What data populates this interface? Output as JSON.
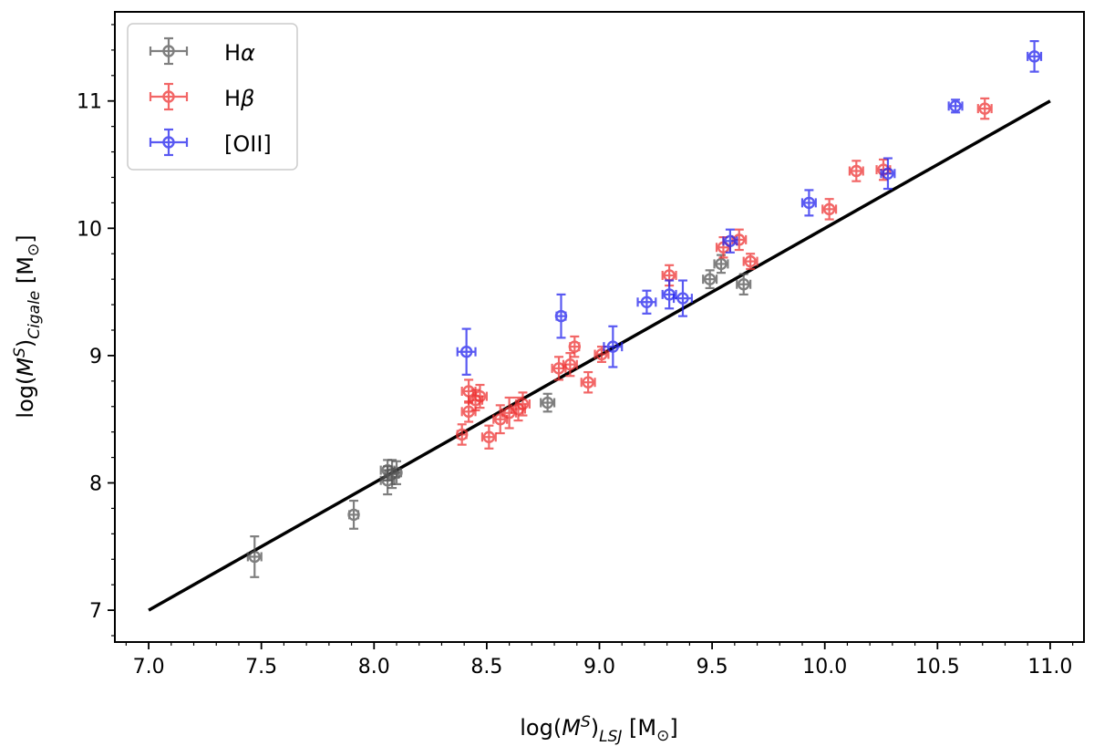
{
  "chart_data": {
    "type": "scatter",
    "xlabel": {
      "main": "log(",
      "var": "M",
      "sub1": "S",
      "close": ")",
      "sub2": "LSJ",
      "unit": " [M",
      "sun": "⊙",
      "end": "]"
    },
    "ylabel": {
      "main": "log(",
      "var": "M",
      "sub1": "S",
      "close": ")",
      "sub2": "Cigale",
      "unit": " [M",
      "sun": "⊙",
      "end": "]"
    },
    "xlim": [
      6.85,
      11.15
    ],
    "ylim": [
      6.75,
      11.7
    ],
    "xticks": [
      "7.0",
      "7.5",
      "8.0",
      "8.5",
      "9.0",
      "9.5",
      "10.0",
      "10.5",
      "11.0"
    ],
    "yticks": [
      "7",
      "8",
      "9",
      "10",
      "11"
    ],
    "legend": {
      "position": "top-left"
    },
    "one_to_one_line": {
      "x": [
        7.0,
        11.0
      ],
      "y": [
        7.0,
        11.0
      ],
      "color": "#000000"
    },
    "series": [
      {
        "name": "Hα",
        "legend_prefix": "H",
        "legend_greek": "α",
        "color": "#555555",
        "points": [
          {
            "x": 7.47,
            "y": 7.42,
            "xerr": 0.03,
            "yerr": 0.16
          },
          {
            "x": 7.91,
            "y": 7.75,
            "xerr": 0.02,
            "yerr": 0.11
          },
          {
            "x": 8.06,
            "y": 8.02,
            "xerr": 0.03,
            "yerr": 0.11
          },
          {
            "x": 8.06,
            "y": 8.1,
            "xerr": 0.03,
            "yerr": 0.08
          },
          {
            "x": 8.08,
            "y": 8.07,
            "xerr": 0.03,
            "yerr": 0.11
          },
          {
            "x": 8.1,
            "y": 8.08,
            "xerr": 0.02,
            "yerr": 0.09
          },
          {
            "x": 8.77,
            "y": 8.63,
            "xerr": 0.03,
            "yerr": 0.07
          },
          {
            "x": 9.49,
            "y": 9.6,
            "xerr": 0.03,
            "yerr": 0.07
          },
          {
            "x": 9.54,
            "y": 9.72,
            "xerr": 0.03,
            "yerr": 0.07
          },
          {
            "x": 9.64,
            "y": 9.56,
            "xerr": 0.03,
            "yerr": 0.08
          }
        ]
      },
      {
        "name": "Hβ",
        "legend_prefix": "H",
        "legend_greek": "β",
        "color": "#ee3333",
        "points": [
          {
            "x": 8.39,
            "y": 8.38,
            "xerr": 0.02,
            "yerr": 0.08
          },
          {
            "x": 8.42,
            "y": 8.56,
            "xerr": 0.03,
            "yerr": 0.08
          },
          {
            "x": 8.42,
            "y": 8.72,
            "xerr": 0.03,
            "yerr": 0.09
          },
          {
            "x": 8.45,
            "y": 8.65,
            "xerr": 0.03,
            "yerr": 0.08
          },
          {
            "x": 8.47,
            "y": 8.68,
            "xerr": 0.03,
            "yerr": 0.09
          },
          {
            "x": 8.51,
            "y": 8.36,
            "xerr": 0.03,
            "yerr": 0.09
          },
          {
            "x": 8.56,
            "y": 8.5,
            "xerr": 0.03,
            "yerr": 0.11
          },
          {
            "x": 8.6,
            "y": 8.55,
            "xerr": 0.03,
            "yerr": 0.12
          },
          {
            "x": 8.64,
            "y": 8.58,
            "xerr": 0.03,
            "yerr": 0.09
          },
          {
            "x": 8.66,
            "y": 8.62,
            "xerr": 0.03,
            "yerr": 0.09
          },
          {
            "x": 8.82,
            "y": 8.9,
            "xerr": 0.03,
            "yerr": 0.09
          },
          {
            "x": 8.87,
            "y": 8.93,
            "xerr": 0.03,
            "yerr": 0.09
          },
          {
            "x": 8.89,
            "y": 9.07,
            "xerr": 0.02,
            "yerr": 0.08
          },
          {
            "x": 8.95,
            "y": 8.79,
            "xerr": 0.03,
            "yerr": 0.08
          },
          {
            "x": 9.01,
            "y": 9.01,
            "xerr": 0.03,
            "yerr": 0.06
          },
          {
            "x": 9.31,
            "y": 9.63,
            "xerr": 0.03,
            "yerr": 0.08
          },
          {
            "x": 9.55,
            "y": 9.85,
            "xerr": 0.03,
            "yerr": 0.08
          },
          {
            "x": 9.62,
            "y": 9.91,
            "xerr": 0.03,
            "yerr": 0.08
          },
          {
            "x": 9.67,
            "y": 9.74,
            "xerr": 0.03,
            "yerr": 0.06
          },
          {
            "x": 10.02,
            "y": 10.15,
            "xerr": 0.03,
            "yerr": 0.08
          },
          {
            "x": 10.14,
            "y": 10.45,
            "xerr": 0.03,
            "yerr": 0.08
          },
          {
            "x": 10.26,
            "y": 10.46,
            "xerr": 0.03,
            "yerr": 0.08
          },
          {
            "x": 10.71,
            "y": 10.94,
            "xerr": 0.03,
            "yerr": 0.08
          }
        ]
      },
      {
        "name": "[OII]",
        "legend_prefix": "[OII]",
        "legend_greek": "",
        "color": "#2222ee",
        "points": [
          {
            "x": 8.41,
            "y": 9.03,
            "xerr": 0.04,
            "yerr": 0.18
          },
          {
            "x": 8.83,
            "y": 9.31,
            "xerr": 0.02,
            "yerr": 0.17
          },
          {
            "x": 9.06,
            "y": 9.07,
            "xerr": 0.04,
            "yerr": 0.16
          },
          {
            "x": 9.21,
            "y": 9.42,
            "xerr": 0.04,
            "yerr": 0.09
          },
          {
            "x": 9.31,
            "y": 9.48,
            "xerr": 0.03,
            "yerr": 0.11
          },
          {
            "x": 9.37,
            "y": 9.45,
            "xerr": 0.04,
            "yerr": 0.14
          },
          {
            "x": 9.58,
            "y": 9.9,
            "xerr": 0.03,
            "yerr": 0.09
          },
          {
            "x": 9.93,
            "y": 10.2,
            "xerr": 0.03,
            "yerr": 0.1
          },
          {
            "x": 10.28,
            "y": 10.43,
            "xerr": 0.03,
            "yerr": 0.12
          },
          {
            "x": 10.58,
            "y": 10.96,
            "xerr": 0.03,
            "yerr": 0.05
          },
          {
            "x": 10.93,
            "y": 11.35,
            "xerr": 0.03,
            "yerr": 0.12
          }
        ]
      }
    ]
  }
}
